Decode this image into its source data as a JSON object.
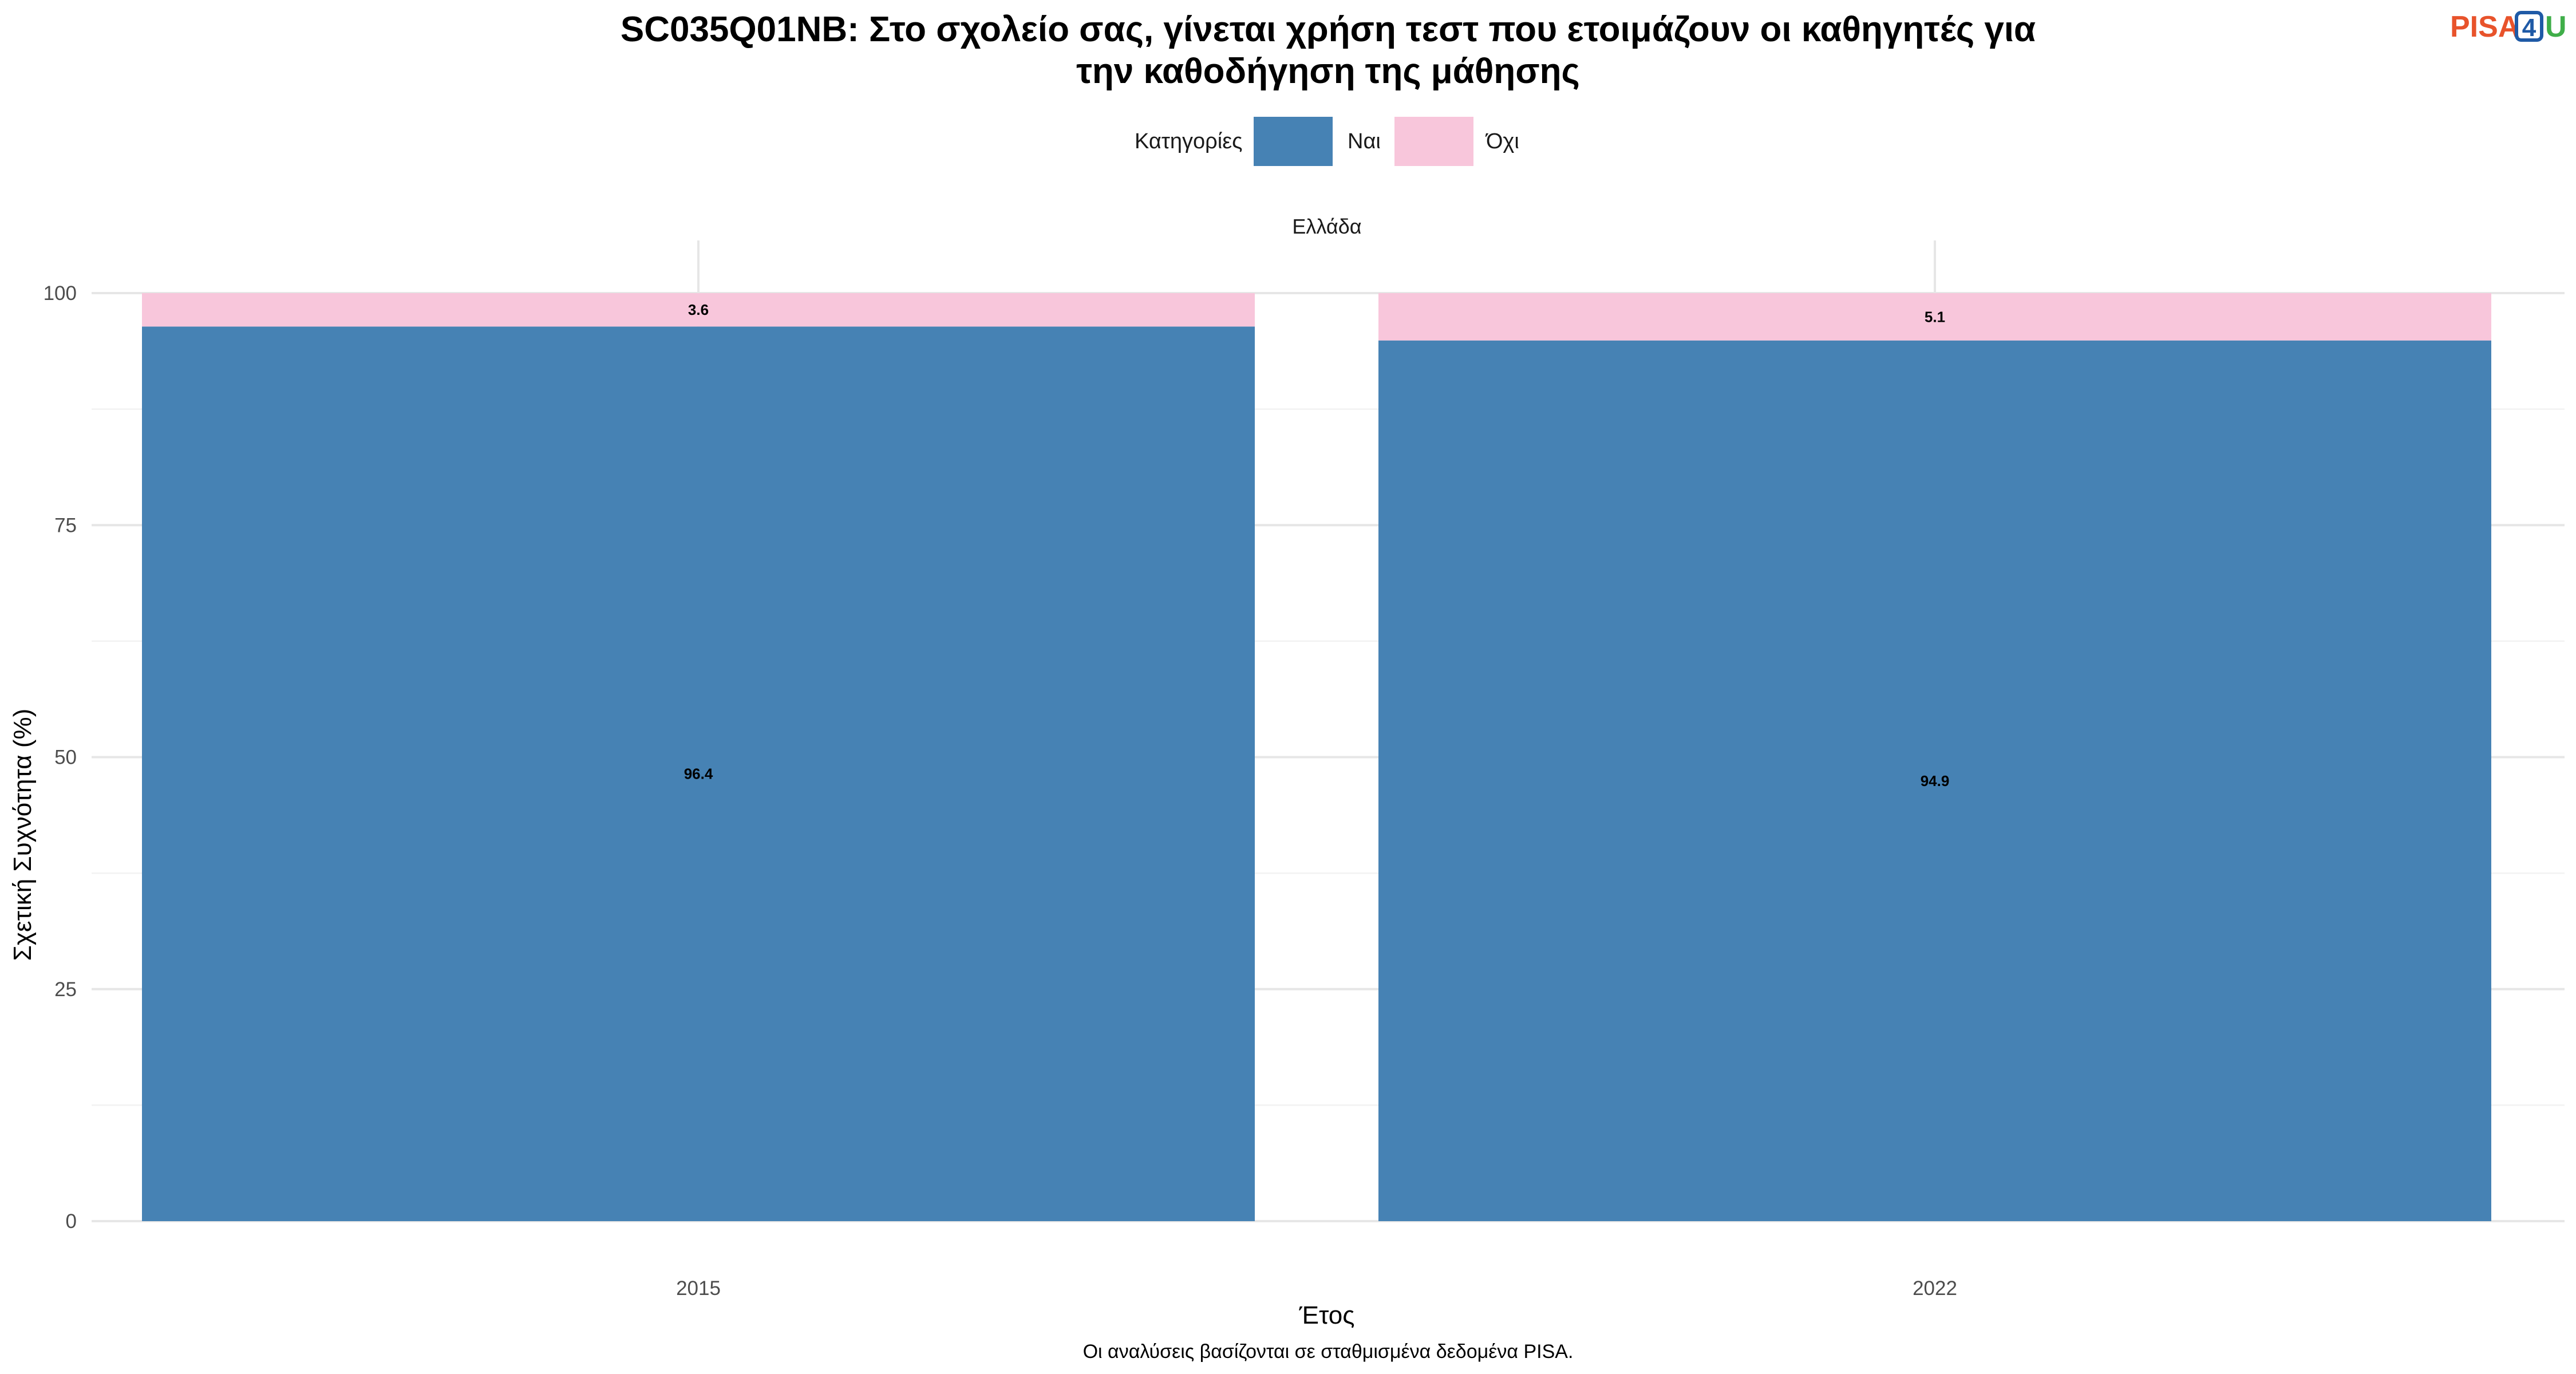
{
  "chart_data": {
    "type": "bar",
    "stacked": true,
    "title_lines": [
      "SC035Q01NB: Στο σχολείο σας, γίνεται χρήση τεστ που ετοιμάζουν οι καθηγητές για",
      "την καθοδήγηση της μάθησης"
    ],
    "facet": "Ελλάδα",
    "xlabel": "Έτος",
    "ylabel": "Σχετική Συχνότητα (%)",
    "categories": [
      "2015",
      "2022"
    ],
    "ylim": [
      0,
      100
    ],
    "yticks": [
      0,
      25,
      50,
      75,
      100
    ],
    "grid": true,
    "legend": {
      "title": "Κατηγορίες",
      "position": "top"
    },
    "series": [
      {
        "name": "Ναι",
        "color": "#4682B4",
        "values": [
          96.4,
          94.9
        ],
        "labels": [
          "96.4",
          "94.9"
        ]
      },
      {
        "name": "Όχι",
        "color": "#F8C6DB",
        "values": [
          3.6,
          5.1
        ],
        "labels": [
          "3.6",
          "5.1"
        ]
      }
    ],
    "caption": "Οι αναλύσεις βασίζονται σε σταθμισμένα δεδομένα PISA."
  },
  "logo": {
    "part1": "PISA",
    "part2": "4",
    "part3": "U",
    "colors": [
      "#E8532B",
      "#1F5AA6",
      "#3FAE49"
    ]
  }
}
